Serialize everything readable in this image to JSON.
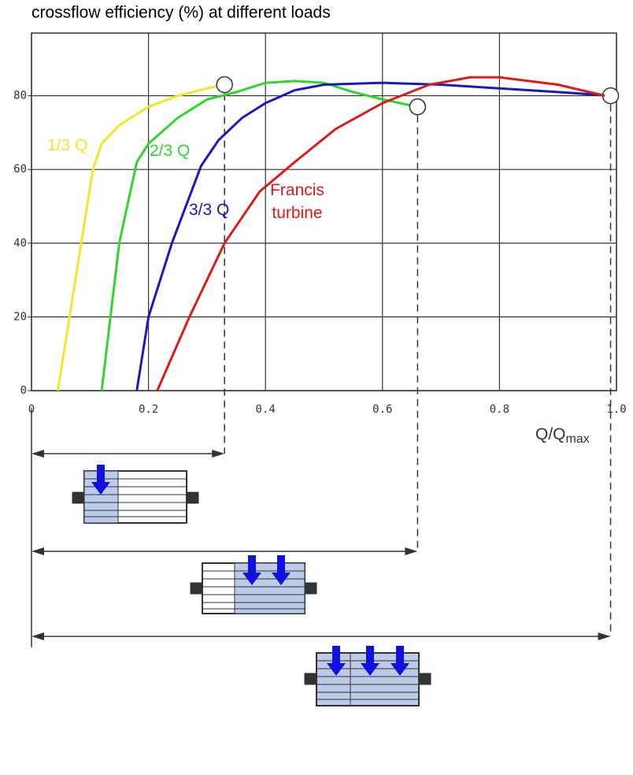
{
  "chart_data": {
    "type": "line",
    "title": "crossflow efficiency (%) at different loads",
    "x_label_main": "Q/Q",
    "x_label_sub": "max",
    "xlim": [
      0,
      1
    ],
    "ylim": [
      0,
      97
    ],
    "xticks": [
      0,
      0.2,
      0.4,
      0.6,
      0.8,
      {
        "value": 1,
        "label": "1.0"
      }
    ],
    "yticks": [
      0,
      20,
      40,
      60,
      80
    ],
    "grid": true,
    "series": [
      {
        "name": "1/3 Q",
        "color": "#f2e52a",
        "crossflow": true,
        "x": [
          0.045,
          0.065,
          0.085,
          0.105,
          0.12,
          0.15,
          0.2,
          0.25,
          0.3,
          0.33
        ],
        "values": [
          0,
          20,
          40,
          60,
          67,
          72,
          77,
          80,
          82,
          83
        ]
      },
      {
        "name": "2/3 Q",
        "color": "#2ed62e",
        "crossflow": true,
        "x": [
          0.12,
          0.135,
          0.15,
          0.18,
          0.2,
          0.25,
          0.3,
          0.35,
          0.4,
          0.45,
          0.5,
          0.55,
          0.6,
          0.66
        ],
        "values": [
          0,
          20,
          40,
          62,
          67,
          74,
          79,
          81,
          83.5,
          84,
          83.5,
          81,
          79,
          77
        ]
      },
      {
        "name": "3/3 Q",
        "color": "#1a1aba",
        "crossflow": true,
        "x": [
          0.18,
          0.2,
          0.24,
          0.29,
          0.32,
          0.36,
          0.4,
          0.45,
          0.5,
          0.6,
          0.7,
          0.8,
          0.9,
          0.99
        ],
        "values": [
          0,
          20,
          40,
          61,
          68,
          74,
          78,
          81.5,
          83,
          83.5,
          83,
          82,
          81,
          80
        ]
      },
      {
        "name": "Francis turbine",
        "color": "#d81c1c",
        "crossflow": false,
        "x": [
          0.215,
          0.27,
          0.33,
          0.39,
          0.45,
          0.52,
          0.6,
          0.68,
          0.75,
          0.8,
          0.9,
          0.98
        ],
        "values": [
          0,
          20,
          40,
          54,
          62,
          71,
          78,
          83,
          85,
          85,
          83,
          80
        ]
      }
    ]
  }
}
